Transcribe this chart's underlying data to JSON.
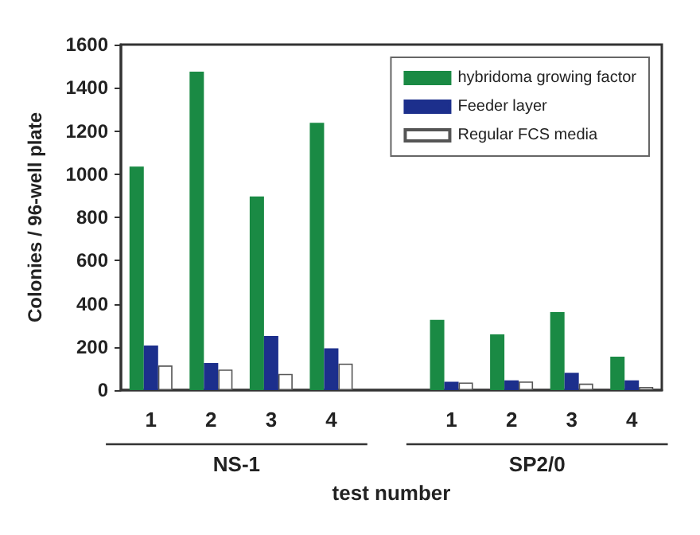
{
  "chart_data": {
    "type": "bar",
    "xlabel": "test number",
    "ylabel": "Colonies / 96-well plate",
    "categories": [
      "1",
      "2",
      "3",
      "4",
      null,
      "1",
      "2",
      "3",
      "4"
    ],
    "series": [
      {
        "name": "hybridoma growing factor",
        "color": "#1a8a44",
        "values": [
          1035,
          1475,
          897,
          1238,
          null,
          325,
          258,
          361,
          155
        ]
      },
      {
        "name": "Feeder layer",
        "color": "#1c2f8c",
        "values": [
          206,
          125,
          251,
          194,
          null,
          39,
          45,
          80,
          45
        ]
      },
      {
        "name": "Regular FCS media",
        "color": "#ffffff",
        "values": [
          114,
          95,
          75,
          123,
          null,
          35,
          40,
          30,
          15
        ]
      }
    ],
    "ylim": [
      0,
      1600
    ],
    "yticks": [
      0,
      200,
      400,
      600,
      800,
      1000,
      1200,
      1400,
      1600
    ],
    "annotations": [
      "NS-1",
      "SP2/0"
    ],
    "grid": false,
    "legend": "top right"
  }
}
